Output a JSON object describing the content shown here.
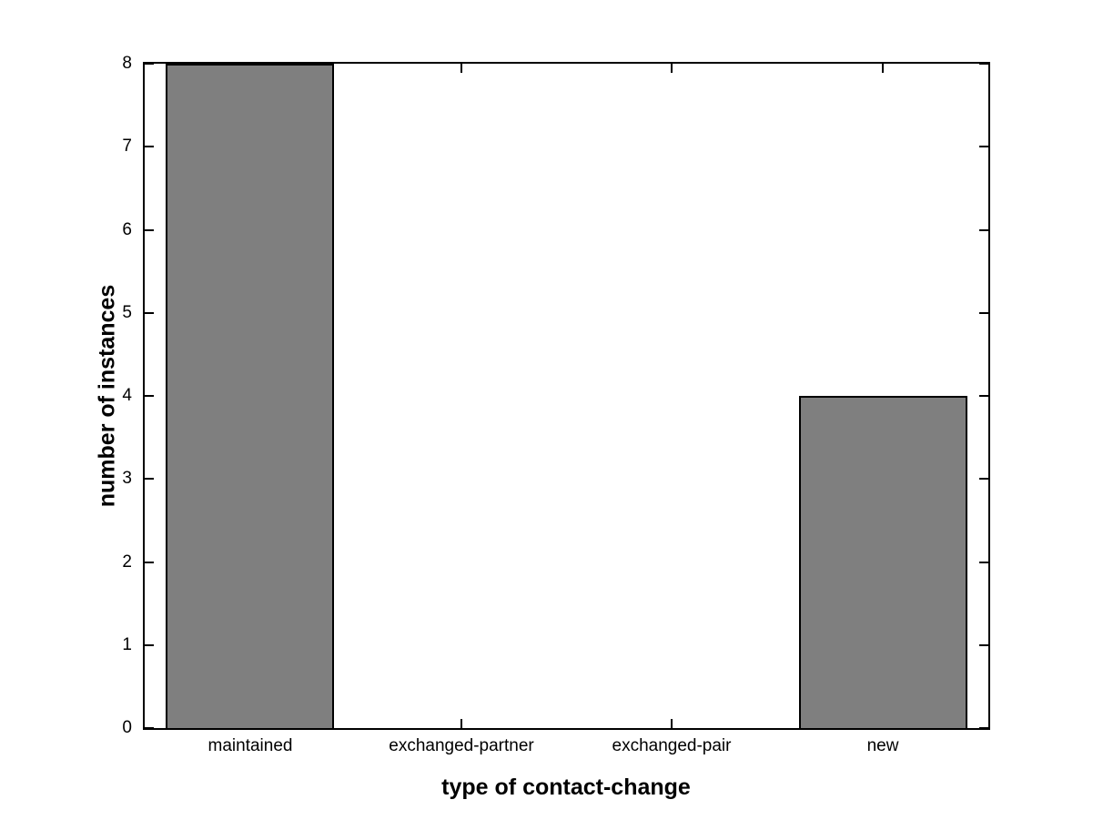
{
  "chart_data": {
    "type": "bar",
    "categories": [
      "maintained",
      "exchanged-partner",
      "exchanged-pair",
      "new"
    ],
    "values": [
      8,
      0,
      0,
      4
    ],
    "title": "",
    "xlabel": "type of contact-change",
    "ylabel": "number of instances",
    "ylim": [
      0,
      8
    ],
    "yticks": [
      0,
      1,
      2,
      3,
      4,
      5,
      6,
      7,
      8
    ],
    "bar_color": "#7f7f7f",
    "bar_edge_color": "#000000",
    "axis_color": "#000000",
    "background_color": "#ffffff",
    "bar_width_fraction": 0.8,
    "grid": false,
    "box": true,
    "legend": false
  }
}
